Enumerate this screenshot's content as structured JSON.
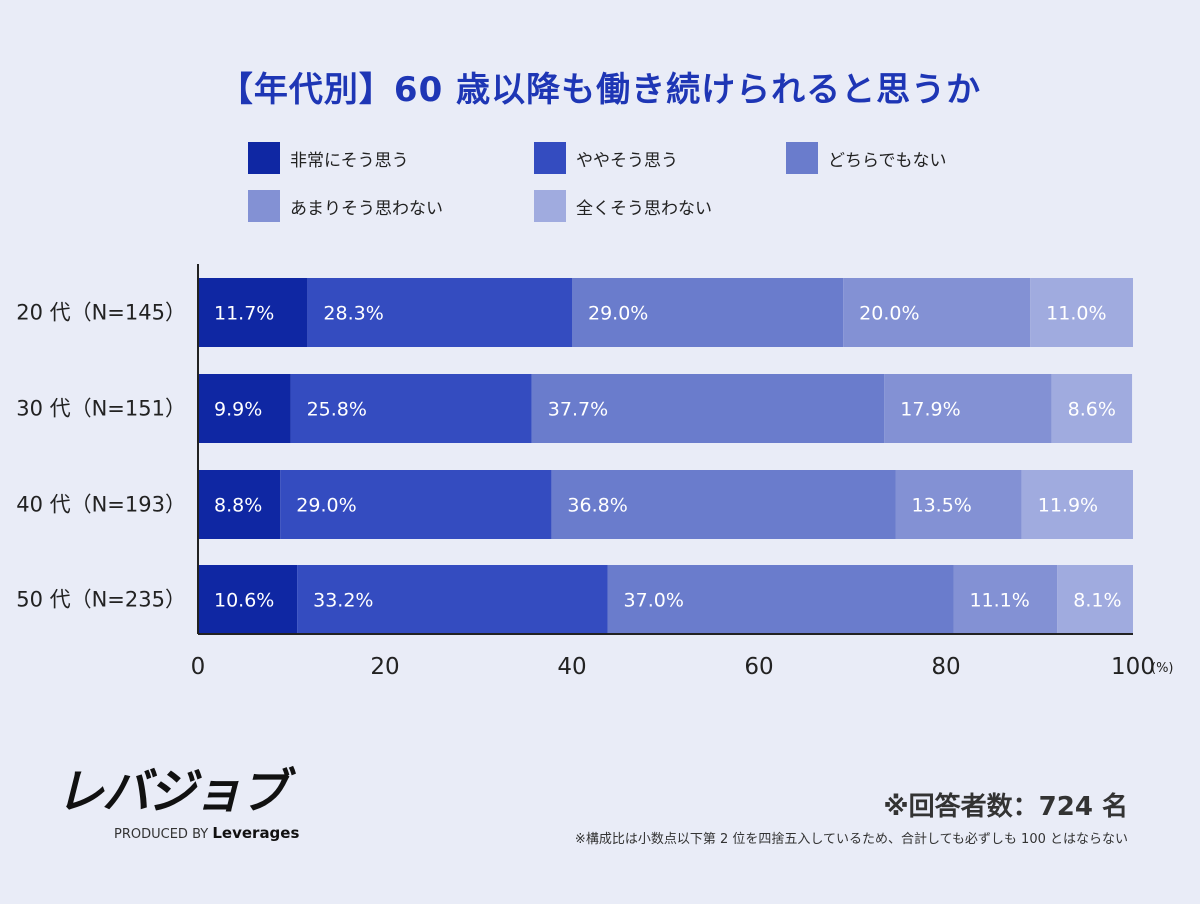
{
  "title": "【年代別】60 歳以降も働き続けられると思うか",
  "legend": [
    {
      "label": "非常にそう思う",
      "color": "#0f27a3"
    },
    {
      "label": "ややそう思う",
      "color": "#344cc0"
    },
    {
      "label": "どちらでもない",
      "color": "#6a7ccc"
    },
    {
      "label": "あまりそう思わない",
      "color": "#8391d4"
    },
    {
      "label": "全くそう思わない",
      "color": "#a0abdf"
    }
  ],
  "chart_data": {
    "type": "bar",
    "orientation": "horizontal",
    "stacked": true,
    "categories": [
      "20 代（N=145）",
      "30 代（N=151）",
      "40 代（N=193）",
      "50 代（N=235）"
    ],
    "series": [
      {
        "name": "非常にそう思う",
        "values": [
          11.7,
          9.9,
          8.8,
          10.6
        ],
        "color": "#0f27a3"
      },
      {
        "name": "ややそう思う",
        "values": [
          28.3,
          25.8,
          29.0,
          33.2
        ],
        "color": "#344cc0"
      },
      {
        "name": "どちらでもない",
        "values": [
          29.0,
          37.7,
          36.8,
          37.0
        ],
        "color": "#6a7ccc"
      },
      {
        "name": "あまりそう思わない",
        "values": [
          20.0,
          17.9,
          13.5,
          11.1
        ],
        "color": "#8391d4"
      },
      {
        "name": "全くそう思わない",
        "values": [
          11.0,
          8.6,
          11.9,
          8.1
        ],
        "color": "#a0abdf"
      }
    ],
    "value_labels": [
      [
        "11.7%",
        "28.3%",
        "29.0%",
        "20.0%",
        "11.0%"
      ],
      [
        "9.9%",
        "25.8%",
        "37.7%",
        "17.9%",
        "8.6%"
      ],
      [
        "8.8%",
        "29.0%",
        "36.8%",
        "13.5%",
        "11.9%"
      ],
      [
        "10.6%",
        "33.2%",
        "37.0%",
        "11.1%",
        "8.1%"
      ]
    ],
    "xticks": [
      "0",
      "20",
      "40",
      "60",
      "80",
      "100"
    ],
    "xunit": "(%)",
    "xlim": [
      0,
      100
    ]
  },
  "logo": {
    "name": "レバジョブ",
    "produced_by": "PRODUCED BY",
    "brand": "Leverages"
  },
  "respondents": "※回答者数：724 名",
  "footnote": "※構成比は小数点以下第 2 位を四捨五入しているため、合計しても必ずしも 100 とはならない"
}
